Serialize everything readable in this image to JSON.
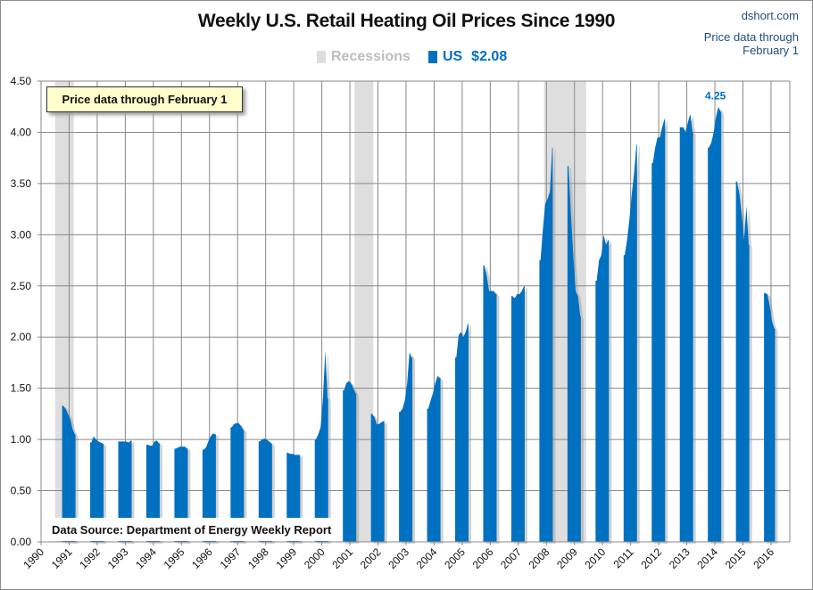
{
  "chart_data": {
    "type": "area",
    "title": "Weekly U.S. Retail Heating Oil Prices Since 1990",
    "source_brand": "dshort.com",
    "note": "Price data through February 1",
    "annotation_box": "Price data through February 1",
    "data_source": "Data Source: Department of Energy Weekly Report",
    "legend": {
      "recessions_label": "Recessions",
      "series_label": "US",
      "latest_value_label": "$2.08"
    },
    "peak_label": "4.25",
    "peak_date": "2014-02",
    "colors": {
      "series": "#0070c0",
      "recession": "#dedede",
      "grid": "#888888",
      "note": "#1f4e79"
    },
    "ylim": [
      0,
      4.5
    ],
    "yticks": [
      "0.00",
      "0.50",
      "1.00",
      "1.50",
      "2.00",
      "2.50",
      "3.00",
      "3.50",
      "4.00",
      "4.50"
    ],
    "xlim": [
      1990,
      2016.75
    ],
    "xticks": [
      "1990",
      "1991",
      "1992",
      "1993",
      "1994",
      "1995",
      "1996",
      "1997",
      "1998",
      "1999",
      "2000",
      "2001",
      "2002",
      "2003",
      "2004",
      "2005",
      "2006",
      "2007",
      "2008",
      "2009",
      "2010",
      "2011",
      "2012",
      "2013",
      "2014",
      "2015",
      "2016"
    ],
    "grid": true,
    "recessions": [
      {
        "start": "1990-07",
        "end": "1991-03"
      },
      {
        "start": "2001-03",
        "end": "2001-11"
      },
      {
        "start": "2007-12",
        "end": "2009-06"
      }
    ],
    "seasons": [
      {
        "start": "1990-10",
        "values": [
          1.33,
          1.3,
          1.25,
          1.2,
          1.1,
          1.05
        ]
      },
      {
        "start": "1991-10",
        "values": [
          0.97,
          1.03,
          1.0,
          0.98,
          0.97,
          0.96
        ]
      },
      {
        "start": "1992-10",
        "values": [
          0.98,
          0.98,
          0.98,
          0.98,
          0.97,
          0.99
        ]
      },
      {
        "start": "1993-10",
        "values": [
          0.95,
          0.94,
          0.94,
          0.98,
          0.99,
          0.96
        ]
      },
      {
        "start": "1994-10",
        "values": [
          0.91,
          0.92,
          0.93,
          0.93,
          0.93,
          0.91
        ]
      },
      {
        "start": "1995-10",
        "values": [
          0.9,
          0.92,
          0.98,
          1.03,
          1.06,
          1.05
        ]
      },
      {
        "start": "1996-10",
        "values": [
          1.12,
          1.15,
          1.16,
          1.16,
          1.13,
          1.09
        ]
      },
      {
        "start": "1997-10",
        "values": [
          0.98,
          1.0,
          1.01,
          1.0,
          0.98,
          0.96
        ]
      },
      {
        "start": "1998-10",
        "values": [
          0.87,
          0.86,
          0.86,
          0.85,
          0.85,
          0.85
        ]
      },
      {
        "start": "1999-10",
        "values": [
          1.0,
          1.05,
          1.12,
          1.4,
          1.87,
          1.4
        ]
      },
      {
        "start": "2000-10",
        "values": [
          1.48,
          1.55,
          1.57,
          1.55,
          1.5,
          1.45
        ]
      },
      {
        "start": "2001-10",
        "values": [
          1.25,
          1.22,
          1.15,
          1.15,
          1.17,
          1.18
        ]
      },
      {
        "start": "2002-10",
        "values": [
          1.27,
          1.3,
          1.38,
          1.55,
          1.85,
          1.8
        ]
      },
      {
        "start": "2003-10",
        "values": [
          1.3,
          1.38,
          1.45,
          1.55,
          1.62,
          1.6
        ]
      },
      {
        "start": "2004-10",
        "values": [
          1.8,
          2.02,
          2.05,
          2.0,
          2.05,
          2.13
        ]
      },
      {
        "start": "2005-10",
        "values": [
          2.7,
          2.6,
          2.45,
          2.45,
          2.45,
          2.42
        ]
      },
      {
        "start": "2006-10",
        "values": [
          2.4,
          2.38,
          2.42,
          2.42,
          2.45,
          2.5
        ]
      },
      {
        "start": "2007-10",
        "values": [
          2.75,
          3.05,
          3.3,
          3.35,
          3.42,
          3.85
        ]
      },
      {
        "start": "2008-10",
        "values": [
          3.67,
          3.2,
          2.8,
          2.45,
          2.4,
          2.2
        ]
      },
      {
        "start": "2009-10",
        "values": [
          2.55,
          2.75,
          2.8,
          3.0,
          2.9,
          2.95
        ]
      },
      {
        "start": "2010-10",
        "values": [
          2.8,
          2.95,
          3.15,
          3.4,
          3.6,
          3.88
        ]
      },
      {
        "start": "2011-10",
        "values": [
          3.7,
          3.85,
          3.95,
          3.95,
          4.05,
          4.13
        ]
      },
      {
        "start": "2012-10",
        "values": [
          4.05,
          4.05,
          4.0,
          4.1,
          4.18,
          4.0
        ]
      },
      {
        "start": "2013-10",
        "values": [
          3.85,
          3.9,
          4.0,
          4.15,
          4.25,
          4.2
        ]
      },
      {
        "start": "2014-10",
        "values": [
          3.52,
          3.4,
          3.2,
          2.95,
          3.28,
          2.9
        ]
      },
      {
        "start": "2015-10",
        "values": [
          2.43,
          2.42,
          2.3,
          2.15,
          2.08
        ]
      }
    ]
  }
}
